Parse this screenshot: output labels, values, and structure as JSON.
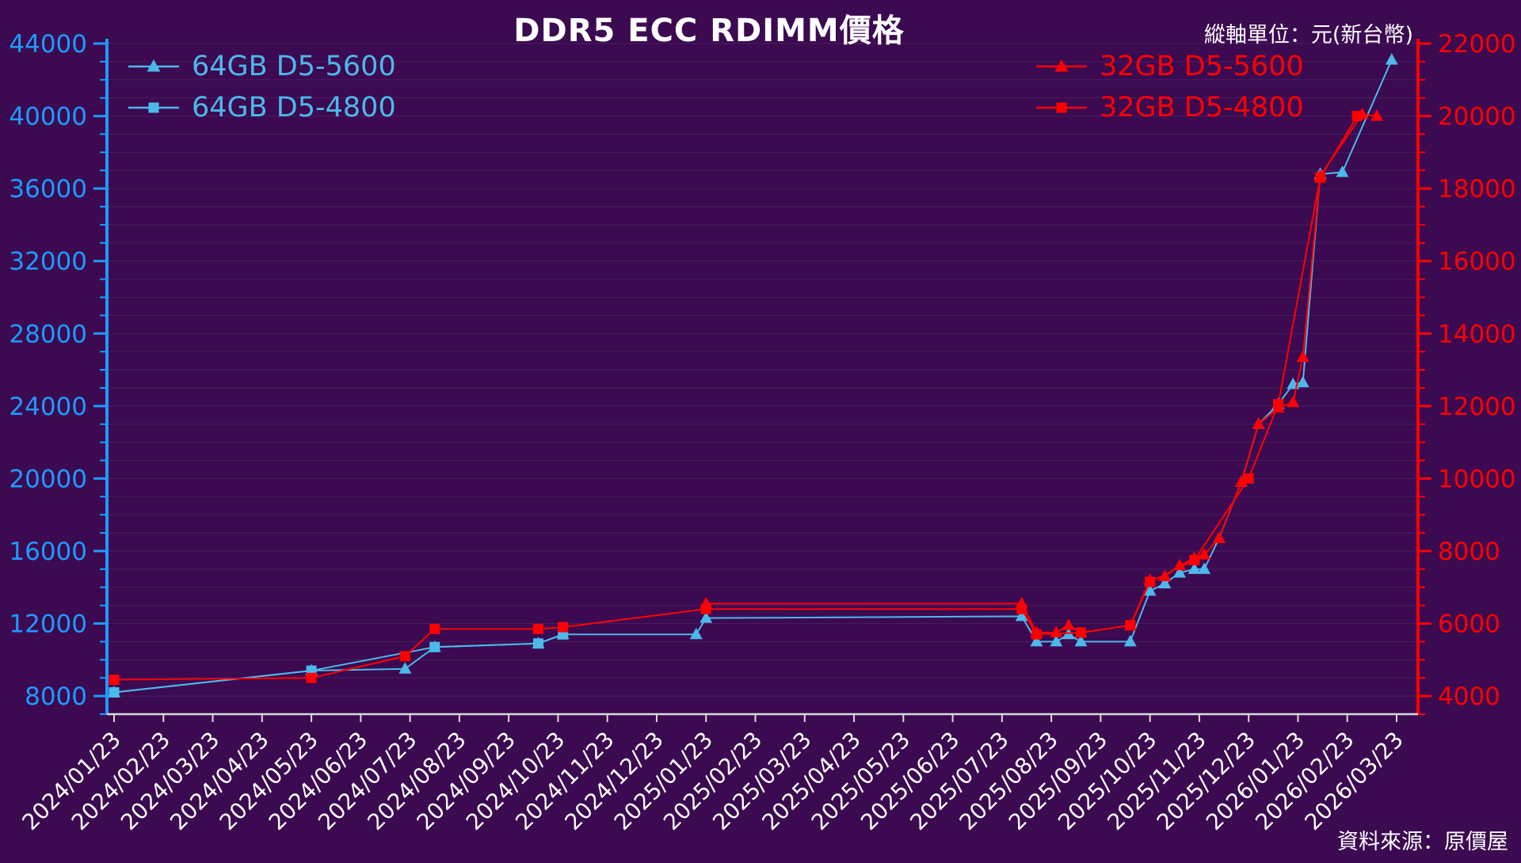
{
  "title": "DDR5 ECC RDIMM價格",
  "unit_label": "縱軸單位：元(新台幣)",
  "source_label": "資料來源：原價屋",
  "colors": {
    "background": "#3b0a51",
    "left_axis": "#1e9bff",
    "right_axis": "#ff0000",
    "series_cyan": "#4db8ea",
    "series_red": "#ff0000",
    "gridline": "rgba(255,255,255,0.08)",
    "bottom_axis": "#d9d9d9",
    "text": "#ffffff"
  },
  "chart_data": {
    "type": "line",
    "title": "DDR5 ECC RDIMM價格",
    "y_unit": "元(新台幣)",
    "source": "原價屋",
    "grid": "faint horizontal gridlines every 1000 (left-axis units)",
    "legend_position": "top-left (64GB series) and top-right (32GB series), inside plot",
    "x_encoding": "fractional index into x_labels (0 = 2024/01/23, 1 = 2024/02/23, ...)",
    "x_labels": [
      "2024/01/23",
      "2024/02/23",
      "2024/03/23",
      "2024/04/23",
      "2024/05/23",
      "2024/06/23",
      "2024/07/23",
      "2024/08/23",
      "2024/09/23",
      "2024/10/23",
      "2024/11/23",
      "2024/12/23",
      "2025/01/23",
      "2025/02/23",
      "2025/03/23",
      "2025/04/23",
      "2025/05/23",
      "2025/06/23",
      "2025/07/23",
      "2025/08/23",
      "2025/09/23",
      "2025/10/23",
      "2025/11/23",
      "2025/12/23",
      "2026/01/23",
      "2026/02/23",
      "2026/03/23"
    ],
    "left_axis": {
      "label_color_note": "blue axis, used by 64GB series",
      "min": 7000,
      "max": 44000,
      "tick_start": 8000,
      "major_step": 4000,
      "minor_step": 1000,
      "major_ticks": [
        8000,
        12000,
        16000,
        20000,
        24000,
        28000,
        32000,
        36000,
        40000,
        44000
      ],
      "color": "#1e9bff"
    },
    "right_axis": {
      "label_color_note": "red axis, used by 32GB series",
      "min": 3500,
      "max": 22000,
      "tick_start": 4000,
      "major_step": 2000,
      "minor_step": 500,
      "major_ticks": [
        4000,
        6000,
        8000,
        10000,
        12000,
        14000,
        16000,
        18000,
        20000,
        22000
      ],
      "color": "#ff0000"
    },
    "series": [
      {
        "name": "64GB D5-5600",
        "color": "#4db8ea",
        "marker": "triangle",
        "axis": "left",
        "points": [
          [
            0,
            8200
          ],
          [
            4,
            9400
          ],
          [
            5.9,
            9500
          ],
          [
            6.5,
            10700
          ],
          [
            8.6,
            10900
          ],
          [
            9.1,
            11400
          ],
          [
            11.8,
            11400
          ],
          [
            12,
            12300
          ],
          [
            18.4,
            12400
          ],
          [
            18.7,
            11000
          ],
          [
            19.1,
            11000
          ],
          [
            19.35,
            11400
          ],
          [
            19.6,
            11000
          ],
          [
            20.6,
            11000
          ],
          [
            21,
            13800
          ],
          [
            21.3,
            14200
          ],
          [
            21.6,
            14800
          ],
          [
            21.9,
            15000
          ],
          [
            22.1,
            15000
          ],
          [
            22.4,
            16700
          ],
          [
            22.85,
            19800
          ],
          [
            23.2,
            23000
          ],
          [
            23.6,
            24100
          ],
          [
            23.9,
            25200
          ],
          [
            24.1,
            25300
          ],
          [
            24.45,
            36800
          ],
          [
            24.9,
            36900
          ],
          [
            25.9,
            43100
          ]
        ]
      },
      {
        "name": "64GB D5-4800",
        "color": "#4db8ea",
        "marker": "square",
        "axis": "left",
        "points": [
          [
            0,
            8200
          ],
          [
            4,
            9400
          ],
          [
            6.5,
            10700
          ],
          [
            8.6,
            10900
          ],
          [
            9.1,
            11400
          ]
        ]
      },
      {
        "name": "32GB D5-5600",
        "color": "#ff0000",
        "marker": "triangle",
        "axis": "right",
        "points": [
          [
            12,
            6550
          ],
          [
            18.4,
            6550
          ],
          [
            18.7,
            5750
          ],
          [
            19.1,
            5750
          ],
          [
            19.35,
            5950
          ],
          [
            19.6,
            5750
          ],
          [
            20.6,
            5950
          ],
          [
            21,
            7200
          ],
          [
            21.3,
            7300
          ],
          [
            21.6,
            7600
          ],
          [
            21.9,
            7800
          ],
          [
            22.1,
            7900
          ],
          [
            22.4,
            8350
          ],
          [
            22.85,
            9900
          ],
          [
            23.2,
            11500
          ],
          [
            23.6,
            11950
          ],
          [
            23.9,
            12100
          ],
          [
            24.1,
            13350
          ],
          [
            24.45,
            18350
          ],
          [
            25.3,
            20050
          ],
          [
            25.6,
            20000
          ]
        ]
      },
      {
        "name": "32GB D5-4800",
        "color": "#ff0000",
        "marker": "square",
        "axis": "right",
        "points": [
          [
            0,
            4450
          ],
          [
            4,
            4500
          ],
          [
            5.9,
            5100
          ],
          [
            6.5,
            5850
          ],
          [
            8.6,
            5850
          ],
          [
            9.1,
            5900
          ],
          [
            12,
            6400
          ],
          [
            18.4,
            6400
          ],
          [
            18.7,
            5700
          ],
          [
            19.6,
            5750
          ],
          [
            20.6,
            5950
          ],
          [
            21,
            7150
          ],
          [
            21.9,
            7750
          ],
          [
            23,
            10000
          ],
          [
            23.6,
            12050
          ],
          [
            24.45,
            18300
          ],
          [
            25.2,
            20000
          ]
        ]
      }
    ]
  }
}
